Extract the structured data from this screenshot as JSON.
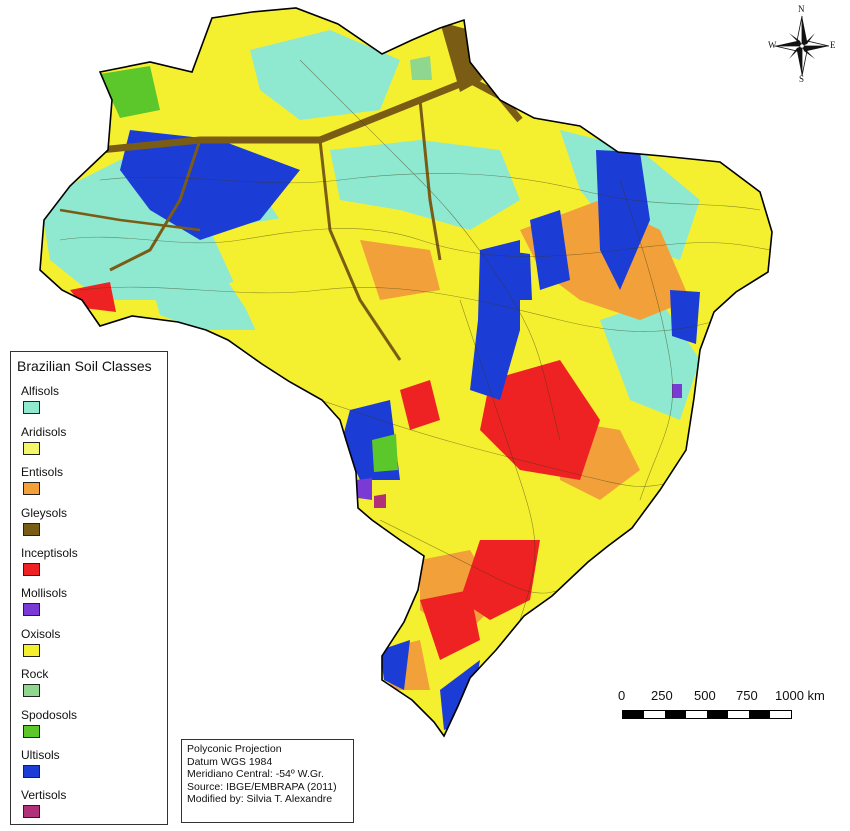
{
  "legend": {
    "title": "Brazilian Soil Classes",
    "classes": [
      {
        "label": "Alfisols",
        "color": "#8fe8d0"
      },
      {
        "label": "Aridisols",
        "color": "#f5f56a"
      },
      {
        "label": "Entisols",
        "color": "#f2a03a"
      },
      {
        "label": "Gleysols",
        "color": "#7a5c14"
      },
      {
        "label": "Inceptisols",
        "color": "#ee2222"
      },
      {
        "label": "Mollisols",
        "color": "#7a3ad6"
      },
      {
        "label": "Oxisols",
        "color": "#f4f030"
      },
      {
        "label": "Rock",
        "color": "#8fd68f"
      },
      {
        "label": "Spodosols",
        "color": "#5cc72a"
      },
      {
        "label": "Ultisols",
        "color": "#1c3cd6"
      },
      {
        "label": "Vertisols",
        "color": "#b0307a"
      }
    ]
  },
  "projection_info": {
    "lines": [
      "Polyconic Projection",
      "Datum WGS 1984",
      "Meridiano Central: -54º W.Gr.",
      "Source: IBGE/EMBRAPA (2011)",
      "Modified by: Silvia T. Alexandre"
    ]
  },
  "scale_bar": {
    "ticks": [
      "0",
      "250",
      "500",
      "750",
      "1000 km"
    ],
    "unit": "km"
  },
  "north_arrow": {
    "n": "N",
    "s": "S",
    "e": "E",
    "w": "W",
    "icon": "compass-rose-icon"
  },
  "country_outline_color": "#000000"
}
